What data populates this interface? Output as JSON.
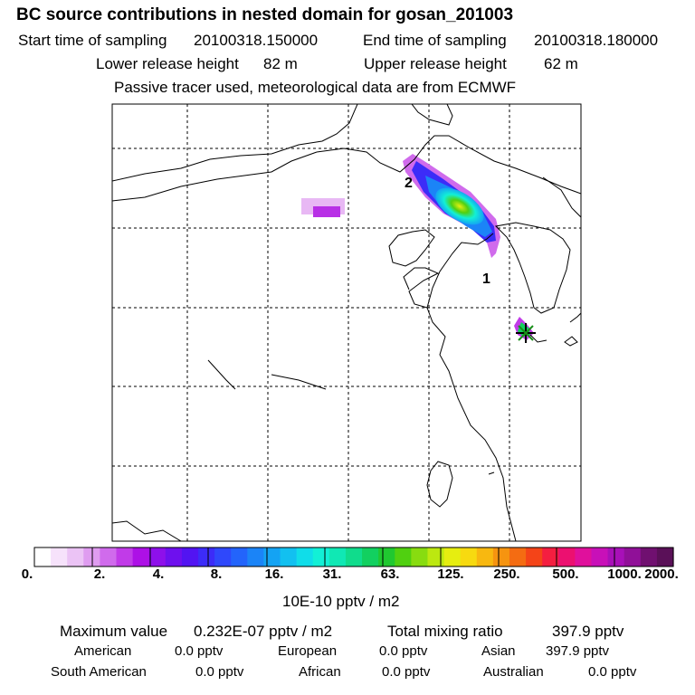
{
  "header": {
    "title": "BC  source contributions in nested domain for gosan_201003",
    "start_label": "Start time of sampling",
    "start_value": "20100318.150000",
    "end_label": "End time of sampling",
    "end_value": "20100318.180000",
    "lower_label": "Lower release height",
    "lower_value": "82 m",
    "upper_label": "Upper release height",
    "upper_value": "62 m",
    "note": "Passive tracer used, meteorological data are from ECMWF"
  },
  "map": {
    "markers": [
      {
        "label": "1"
      },
      {
        "label": "2"
      }
    ]
  },
  "colorbar": {
    "labels": [
      "0.",
      "2.",
      "4.",
      "8.",
      "16.",
      "31.",
      "63.",
      "125.",
      "250.",
      "500.",
      "1000.",
      "2000."
    ],
    "colors": [
      "#ffffff",
      "#f6e2fb",
      "#ebc3f5",
      "#df9cf0",
      "#d06bec",
      "#c13be8",
      "#ad10e6",
      "#8e10ea",
      "#6e10ee",
      "#5214f2",
      "#3c2cf8",
      "#2f48fb",
      "#2364fb",
      "#1b84f7",
      "#14a3f3",
      "#12c0f0",
      "#10dde9",
      "#12f0d6",
      "#10e8b4",
      "#10dc8c",
      "#12d060",
      "#20c830",
      "#50d010",
      "#88dc10",
      "#bce810",
      "#e6ee10",
      "#f7da10",
      "#f8b810",
      "#f69410",
      "#f46c12",
      "#f44418",
      "#f41e40",
      "#ec1070",
      "#e0109c",
      "#c810b8",
      "#a810b8",
      "#901098",
      "#701070",
      "#5a1058"
    ],
    "unit": "10E-10 pptv / m2"
  },
  "stats": {
    "max_label": "Maximum value",
    "max_value": "0.232E-07 pptv / m2",
    "total_label": "Total mixing ratio",
    "total_value": "397.9 pptv",
    "regions": [
      {
        "name": "American",
        "value": "0.0 pptv"
      },
      {
        "name": "European",
        "value": "0.0 pptv"
      },
      {
        "name": "Asian",
        "value": "397.9 pptv"
      },
      {
        "name": "South American",
        "value": "0.0 pptv"
      },
      {
        "name": "African",
        "value": "0.0 pptv"
      },
      {
        "name": "Australian",
        "value": "0.0 pptv"
      }
    ]
  }
}
